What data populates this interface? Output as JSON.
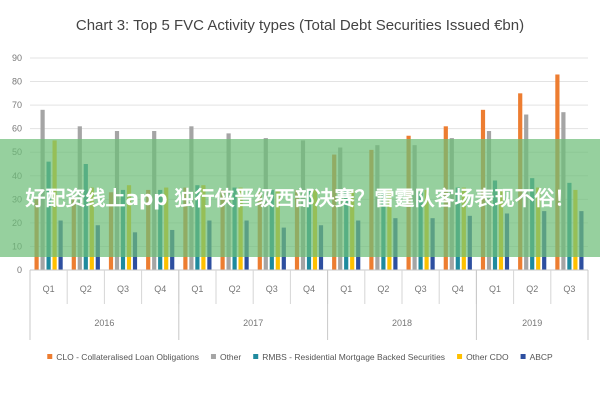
{
  "banner": {
    "text": "好配资线上app 独行侠晋级西部决赛？雷霆队客场表现不俗！"
  },
  "chart_data": {
    "type": "bar",
    "title": "Chart 3: Top 5 FVC Activity types (Total Debt Securities Issued €bn)",
    "ylim": [
      0,
      90
    ],
    "yticks": [
      0,
      10,
      20,
      30,
      40,
      50,
      60,
      70,
      80,
      90
    ],
    "grid": true,
    "legend_position": "bottom",
    "categories": [
      "Q1",
      "Q2",
      "Q3",
      "Q4",
      "Q1",
      "Q2",
      "Q3",
      "Q4",
      "Q1",
      "Q2",
      "Q3",
      "Q4",
      "Q1",
      "Q2",
      "Q3"
    ],
    "years": [
      {
        "label": "2016",
        "count": 4
      },
      {
        "label": "2017",
        "count": 4
      },
      {
        "label": "2018",
        "count": 4
      },
      {
        "label": "2019",
        "count": 3
      }
    ],
    "series": [
      {
        "name": "CLO - Collateralised Loan Obligations",
        "color": "#ED7D31",
        "values": [
          30,
          31,
          33,
          34,
          35,
          34,
          33,
          34,
          49,
          51,
          57,
          61,
          68,
          75,
          83
        ]
      },
      {
        "name": "Other",
        "color": "#A5A5A5",
        "values": [
          68,
          61,
          59,
          59,
          61,
          58,
          56,
          55,
          52,
          53,
          53,
          56,
          59,
          66,
          67
        ]
      },
      {
        "name": "RMBS - Residential Mortgage Backed Securities",
        "color": "#1F8A9E",
        "values": [
          46,
          45,
          34,
          34,
          36,
          35,
          34,
          34,
          34,
          33,
          33,
          35,
          38,
          39,
          37
        ]
      },
      {
        "name": "Other CDO",
        "color": "#FFC000",
        "values": [
          55,
          35,
          36,
          35,
          36,
          35,
          34,
          34,
          34,
          34,
          34,
          35,
          34,
          35,
          34
        ]
      },
      {
        "name": "ABCP",
        "color": "#2E4FA0",
        "values": [
          21,
          19,
          16,
          17,
          21,
          21,
          18,
          19,
          21,
          22,
          22,
          23,
          24,
          25,
          25
        ]
      }
    ]
  }
}
